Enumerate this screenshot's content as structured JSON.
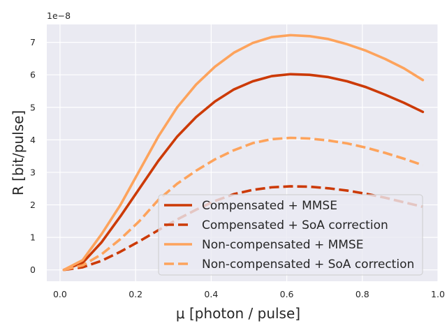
{
  "chart_data": {
    "type": "line",
    "title": "",
    "xlabel": "μ [photon / pulse]",
    "ylabel": "R [bit/pulse]",
    "y_offset_label": "1e−8",
    "xlim": [
      -0.035,
      1.0
    ],
    "ylim": [
      -0.35,
      7.55
    ],
    "x_ticks": [
      0.0,
      0.2,
      0.4,
      0.6,
      0.8,
      1.0
    ],
    "x_tick_labels": [
      "0.0",
      "0.2",
      "0.4",
      "0.6",
      "0.8",
      "1.0"
    ],
    "y_ticks": [
      0,
      1,
      2,
      3,
      4,
      5,
      6,
      7
    ],
    "y_tick_labels": [
      "0",
      "1",
      "2",
      "3",
      "4",
      "5",
      "6",
      "7"
    ],
    "grid": true,
    "legend_position": "lower-right",
    "x": [
      0.01,
      0.06,
      0.11,
      0.16,
      0.21,
      0.26,
      0.31,
      0.36,
      0.41,
      0.46,
      0.51,
      0.56,
      0.61,
      0.66,
      0.71,
      0.76,
      0.81,
      0.86,
      0.91,
      0.96
    ],
    "series": [
      {
        "name": "Compensated + MMSE",
        "color": "#cc3a06",
        "dash": "solid",
        "values": [
          0.0,
          0.22,
          0.85,
          1.65,
          2.5,
          3.35,
          4.1,
          4.7,
          5.18,
          5.55,
          5.8,
          5.96,
          6.02,
          6.0,
          5.93,
          5.8,
          5.62,
          5.39,
          5.14,
          4.86
        ]
      },
      {
        "name": "Compensated + SoA correction",
        "color": "#cc3a06",
        "dash": "dashed",
        "values": [
          0.0,
          0.08,
          0.28,
          0.56,
          0.88,
          1.22,
          1.55,
          1.85,
          2.12,
          2.33,
          2.46,
          2.54,
          2.57,
          2.56,
          2.51,
          2.44,
          2.34,
          2.22,
          2.08,
          1.94
        ]
      },
      {
        "name": "Non-compensated + MMSE",
        "color": "#fda35c",
        "dash": "solid",
        "values": [
          0.0,
          0.3,
          1.1,
          2.0,
          3.05,
          4.1,
          5.0,
          5.7,
          6.25,
          6.68,
          6.98,
          7.16,
          7.22,
          7.19,
          7.1,
          6.94,
          6.74,
          6.49,
          6.2,
          5.84
        ]
      },
      {
        "name": "Non-compensated + SoA correction",
        "color": "#fda35c",
        "dash": "dashed",
        "values": [
          0.0,
          0.14,
          0.48,
          0.95,
          1.5,
          2.15,
          2.65,
          3.05,
          3.4,
          3.68,
          3.9,
          4.02,
          4.06,
          4.04,
          3.98,
          3.89,
          3.76,
          3.6,
          3.42,
          3.22
        ]
      }
    ]
  }
}
